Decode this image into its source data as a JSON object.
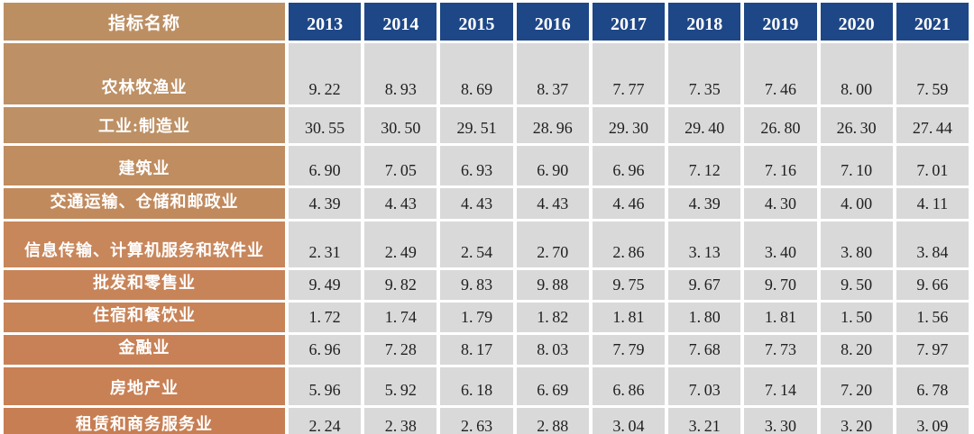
{
  "table": {
    "header": {
      "label": "指标名称",
      "years": [
        "2013",
        "2014",
        "2015",
        "2016",
        "2017",
        "2018",
        "2019",
        "2020",
        "2021"
      ]
    },
    "rows": [
      {
        "label": "农林牧渔业",
        "values": [
          "9.22",
          "8.93",
          "8.69",
          "8.37",
          "7.77",
          "7.35",
          "7.46",
          "8.00",
          "7.59"
        ]
      },
      {
        "label": "工业:制造业",
        "values": [
          "30.55",
          "30.50",
          "29.51",
          "28.96",
          "29.30",
          "29.40",
          "26.80",
          "26.30",
          "27.44"
        ]
      },
      {
        "label": "建筑业",
        "values": [
          "6.90",
          "7.05",
          "6.93",
          "6.90",
          "6.96",
          "7.12",
          "7.16",
          "7.10",
          "7.01"
        ]
      },
      {
        "label": "交通运输、仓储和邮政业",
        "values": [
          "4.39",
          "4.43",
          "4.43",
          "4.43",
          "4.46",
          "4.39",
          "4.30",
          "4.00",
          "4.11"
        ]
      },
      {
        "label": "信息传输、计算机服务和软件业",
        "values": [
          "2.31",
          "2.49",
          "2.54",
          "2.70",
          "2.86",
          "3.13",
          "3.40",
          "3.80",
          "3.84"
        ]
      },
      {
        "label": "批发和零售业",
        "values": [
          "9.49",
          "9.82",
          "9.83",
          "9.88",
          "9.75",
          "9.67",
          "9.70",
          "9.50",
          "9.66"
        ]
      },
      {
        "label": "住宿和餐饮业",
        "values": [
          "1.72",
          "1.74",
          "1.79",
          "1.82",
          "1.81",
          "1.80",
          "1.81",
          "1.50",
          "1.56"
        ]
      },
      {
        "label": "金融业",
        "values": [
          "6.96",
          "7.28",
          "8.17",
          "8.03",
          "7.79",
          "7.68",
          "7.73",
          "8.20",
          "7.97"
        ]
      },
      {
        "label": "房地产业",
        "values": [
          "5.96",
          "5.92",
          "6.18",
          "6.69",
          "6.86",
          "7.03",
          "7.14",
          "7.20",
          "6.78"
        ]
      },
      {
        "label": "租赁和商务服务业",
        "values": [
          "2.24",
          "2.38",
          "2.63",
          "2.88",
          "3.04",
          "3.21",
          "3.30",
          "3.20",
          "3.09"
        ]
      }
    ]
  },
  "colors": {
    "year_header_bg": "#1E4787",
    "header_label_bg": "#BC8F63",
    "cell_gray": "#D9D9D9",
    "value_text": "#1F1F1F",
    "row_label_colors": [
      "#BD9065",
      "#BD9065",
      "#BF8D60",
      "#C18A5D",
      "#C8865B",
      "#C88459",
      "#C88357",
      "#C88156",
      "#C88055",
      "#C77E53"
    ]
  },
  "chart_data": {
    "type": "table",
    "title": "",
    "categories": [
      "2013",
      "2014",
      "2015",
      "2016",
      "2017",
      "2018",
      "2019",
      "2020",
      "2021"
    ],
    "series": [
      {
        "name": "农林牧渔业",
        "values": [
          9.22,
          8.93,
          8.69,
          8.37,
          7.77,
          7.35,
          7.46,
          8.0,
          7.59
        ]
      },
      {
        "name": "工业:制造业",
        "values": [
          30.55,
          30.5,
          29.51,
          28.96,
          29.3,
          29.4,
          26.8,
          26.3,
          27.44
        ]
      },
      {
        "name": "建筑业",
        "values": [
          6.9,
          7.05,
          6.93,
          6.9,
          6.96,
          7.12,
          7.16,
          7.1,
          7.01
        ]
      },
      {
        "name": "交通运输、仓储和邮政业",
        "values": [
          4.39,
          4.43,
          4.43,
          4.43,
          4.46,
          4.39,
          4.3,
          4.0,
          4.11
        ]
      },
      {
        "name": "信息传输、计算机服务和软件业",
        "values": [
          2.31,
          2.49,
          2.54,
          2.7,
          2.86,
          3.13,
          3.4,
          3.8,
          3.84
        ]
      },
      {
        "name": "批发和零售业",
        "values": [
          9.49,
          9.82,
          9.83,
          9.88,
          9.75,
          9.67,
          9.7,
          9.5,
          9.66
        ]
      },
      {
        "name": "住宿和餐饮业",
        "values": [
          1.72,
          1.74,
          1.79,
          1.82,
          1.81,
          1.8,
          1.81,
          1.5,
          1.56
        ]
      },
      {
        "name": "金融业",
        "values": [
          6.96,
          7.28,
          8.17,
          8.03,
          7.79,
          7.68,
          7.73,
          8.2,
          7.97
        ]
      },
      {
        "name": "房地产业",
        "values": [
          5.96,
          5.92,
          6.18,
          6.69,
          6.86,
          7.03,
          7.14,
          7.2,
          6.78
        ]
      },
      {
        "name": "租赁和商务服务业",
        "values": [
          2.24,
          2.38,
          2.63,
          2.88,
          3.04,
          3.21,
          3.3,
          3.2,
          3.09
        ]
      }
    ],
    "layout": {
      "first_column_header": "指标名称",
      "grid": "white gaps between cells",
      "legend": "none"
    }
  }
}
